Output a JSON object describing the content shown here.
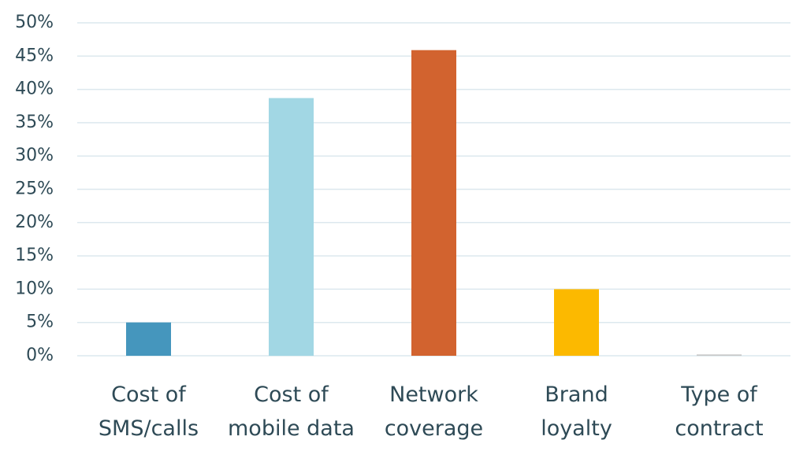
{
  "chart_data": {
    "type": "bar",
    "categories": [
      "Cost of SMS/calls",
      "Cost of mobile data",
      "Network coverage",
      "Brand loyalty",
      "Type of contract"
    ],
    "values": [
      5,
      38.7,
      45.9,
      10,
      0.2
    ],
    "colors": [
      "#4596bd",
      "#a2d7e4",
      "#d2632f",
      "#fcb900",
      "#c8c8c8"
    ],
    "ylim": [
      0,
      50
    ],
    "yticks": [
      {
        "value": 0,
        "label": "0%"
      },
      {
        "value": 5,
        "label": "5%"
      },
      {
        "value": 10,
        "label": "10%"
      },
      {
        "value": 15,
        "label": "15%"
      },
      {
        "value": 20,
        "label": "20%"
      },
      {
        "value": 25,
        "label": "25%"
      },
      {
        "value": 30,
        "label": "30%"
      },
      {
        "value": 35,
        "label": "35%"
      },
      {
        "value": 40,
        "label": "40%"
      },
      {
        "value": 45,
        "label": "45%"
      },
      {
        "value": 50,
        "label": "50%"
      }
    ],
    "grid": true
  }
}
